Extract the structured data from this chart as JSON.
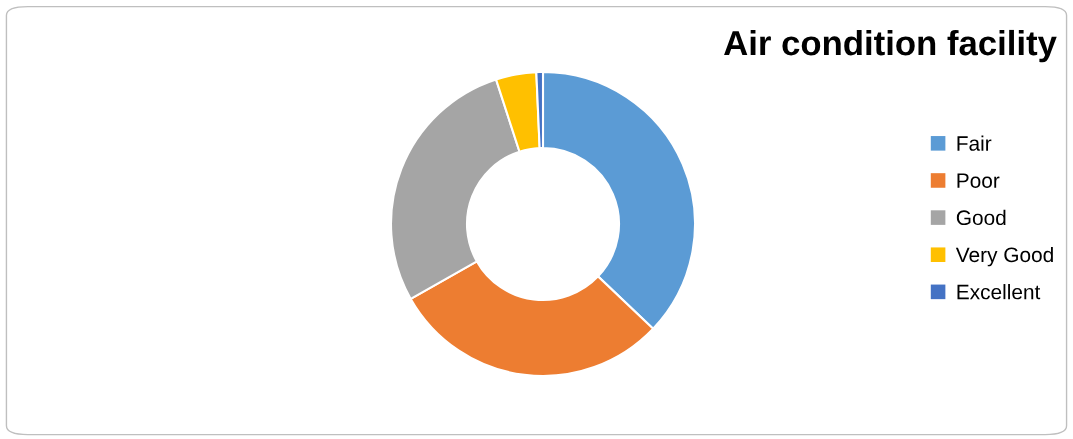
{
  "chart_data": {
    "type": "donut",
    "title": "Air condition facility",
    "categories": [
      "Fair",
      "Poor",
      "Good",
      "Very Good",
      "Excellent"
    ],
    "values": [
      37.1,
      29.7,
      28.2,
      4.3,
      0.7
    ],
    "colors": [
      "#5b9bd5",
      "#ed7d31",
      "#a5a5a5",
      "#ffc000",
      "#4472c4"
    ],
    "legend": "right"
  }
}
